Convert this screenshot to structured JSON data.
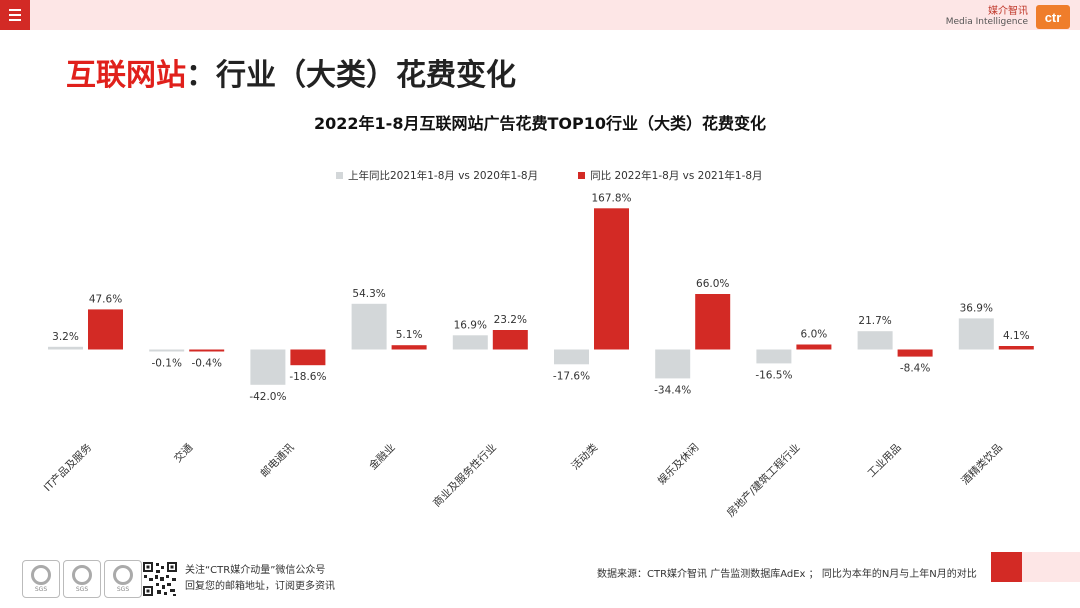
{
  "header": {
    "brand_cn": "媒介智讯",
    "brand_en": "Media Intelligence",
    "logo_text": "ctr"
  },
  "page_title": {
    "red_part": "互联网站",
    "black_part": "：行业（大类）花费变化"
  },
  "colors": {
    "prev": "#d3d7d9",
    "curr": "#d32a25",
    "accent": "#d32a25"
  },
  "chart_data": {
    "type": "bar",
    "title": "2022年1-8月互联网站广告花费TOP10行业（大类）花费变化",
    "categories": [
      "IT产品及服务",
      "交通",
      "邮电通讯",
      "金融业",
      "商业及服务性行业",
      "活动类",
      "娱乐及休闲",
      "房地产/建筑工程行业",
      "工业用品",
      "酒精类饮品"
    ],
    "series": [
      {
        "name": "上年同比2021年1-8月  vs  2020年1-8月",
        "values": [
          3.2,
          -0.1,
          -42.0,
          54.3,
          16.9,
          -17.6,
          -34.4,
          -16.5,
          21.7,
          36.9
        ],
        "labels": [
          "3.2%",
          "-0.1%",
          "-42.0%",
          "54.3%",
          "16.9%",
          "-17.6%",
          "-34.4%",
          "-16.5%",
          "21.7%",
          "36.9%"
        ]
      },
      {
        "name": "同比 2022年1-8月  vs  2021年1-8月",
        "values": [
          47.6,
          -0.4,
          -18.6,
          5.1,
          23.2,
          167.8,
          66.0,
          6.0,
          -8.4,
          4.1
        ],
        "labels": [
          "47.6%",
          "-0.4%",
          "-18.6%",
          "5.1%",
          "23.2%",
          "167.8%",
          "66.0%",
          "6.0%",
          "-8.4%",
          "4.1%"
        ]
      }
    ],
    "ylabel": "",
    "xlabel": "",
    "ylim": [
      -42.0,
      167.8
    ],
    "grid": false,
    "legend_position": "top"
  },
  "footer": {
    "follow_line1": "关注“CTR媒介动量”微信公众号",
    "follow_line2": "回复您的邮箱地址，订阅更多资讯",
    "source": "数据来源：CTR媒介智讯 广告监测数据库AdEx ；  同比为本年的N月与上年N月的对比",
    "cert_label": "SGS"
  }
}
